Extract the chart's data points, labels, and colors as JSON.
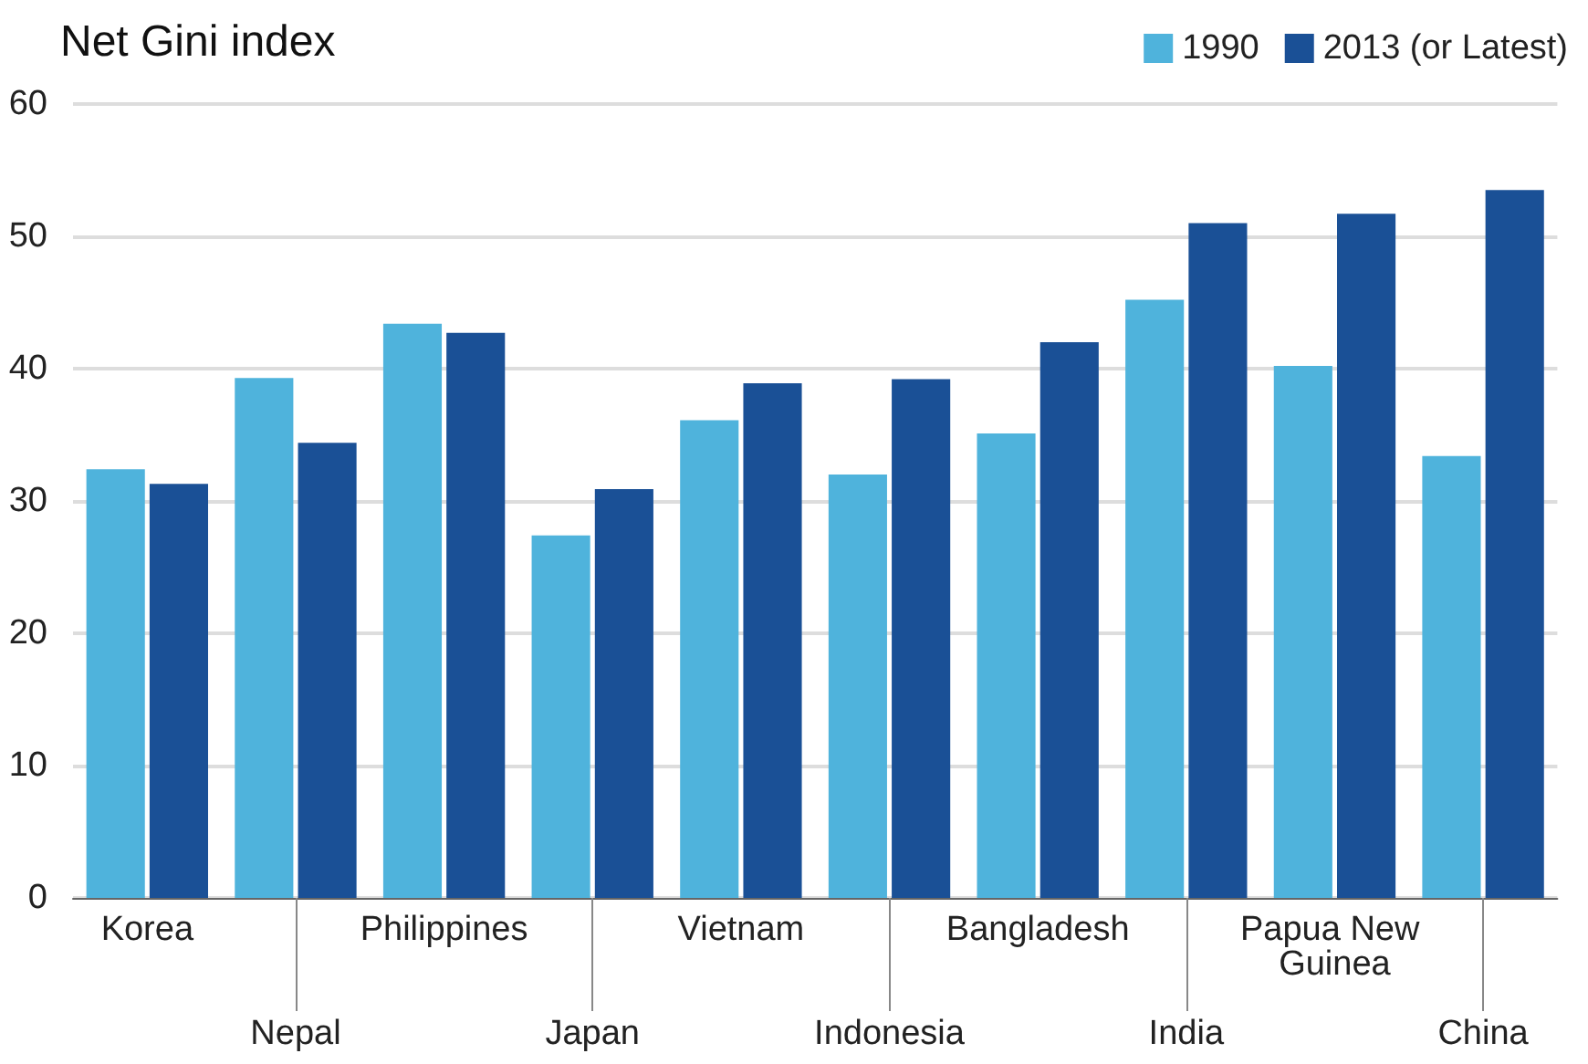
{
  "chart_data": {
    "type": "bar",
    "title": "Net Gini index",
    "categories": [
      "Korea",
      "Nepal",
      "Philippines",
      "Japan",
      "Vietnam",
      "Indonesia",
      "Bangladesh",
      "India",
      "Papua New Guinea",
      "China"
    ],
    "series": [
      {
        "name": "1990",
        "color": "#4fb3dc",
        "values": [
          32.4,
          39.3,
          43.4,
          27.4,
          36.1,
          32.0,
          35.1,
          45.2,
          40.2,
          33.4
        ]
      },
      {
        "name": "2013 (or Latest)",
        "color": "#1a5096",
        "values": [
          31.3,
          34.4,
          42.7,
          30.9,
          38.9,
          39.2,
          42.0,
          51.0,
          51.7,
          53.5
        ]
      }
    ],
    "ylim": [
      0,
      60
    ],
    "yticks": [
      0,
      10,
      20,
      30,
      40,
      50,
      60
    ],
    "grid": "y",
    "legend": "top right"
  }
}
